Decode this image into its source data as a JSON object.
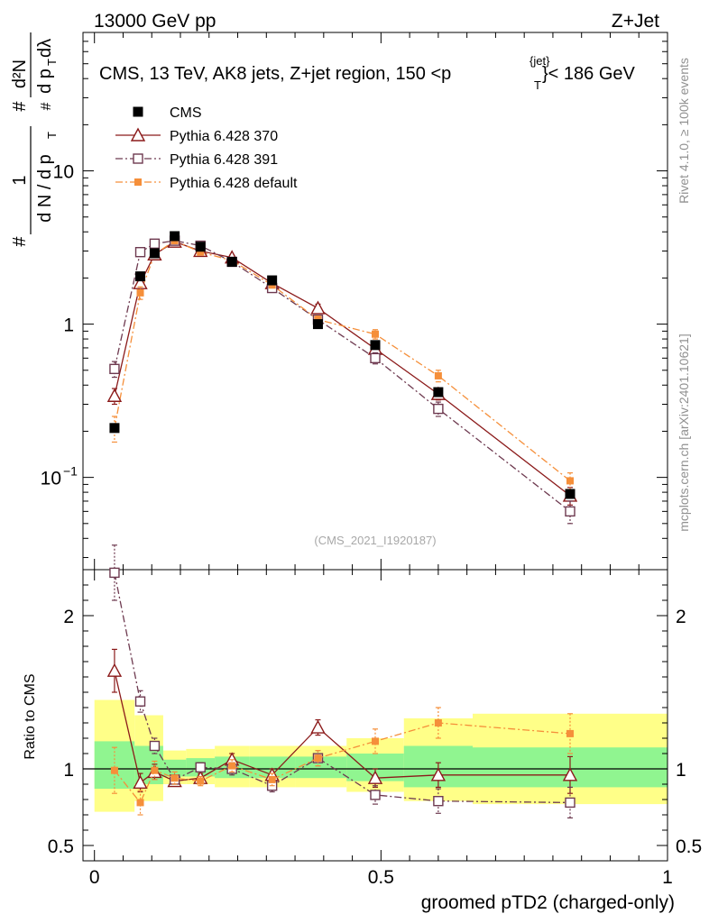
{
  "header": {
    "left": "13000 GeV pp",
    "right": "Z+Jet"
  },
  "side_labels": {
    "rivet": "Rivet 4.1.0, ≥ 100k events",
    "mcplots": "mcplots.cern.ch [arXiv:2401.10621]"
  },
  "chart_data": [
    {
      "type": "scatter",
      "panel": "main",
      "title": "CMS, 13 TeV, AK8 jets, Z+jet region, 150 <p",
      "title_sup": "{jet}",
      "title_sub": "T",
      "title_end": "}< 186 GeV",
      "watermark": "(CMS_2021_I1920187)",
      "ylabel": {
        "frac_num": "1",
        "frac_den": "d N / d p",
        "den_sub": "T",
        "num2": "d²N",
        "den2": "d p",
        "den2_sub": "T",
        "den2_end": " dλ",
        "hash": "#"
      },
      "yscale": "log",
      "ylim": [
        0.025,
        80
      ],
      "xlim": [
        -0.02,
        1.0
      ],
      "ytick_labels": [
        {
          "value": 10,
          "label": "10"
        },
        {
          "value": 1,
          "label": "1"
        },
        {
          "value": 0.1,
          "label": "10",
          "sup": "−1"
        }
      ],
      "x": [
        0.035,
        0.08,
        0.105,
        0.14,
        0.185,
        0.24,
        0.31,
        0.39,
        0.49,
        0.6,
        0.83
      ],
      "series": [
        {
          "name": "CMS",
          "color": "#000000",
          "style": "filled-square",
          "values": [
            0.21,
            2.05,
            2.9,
            3.75,
            3.2,
            2.55,
            1.93,
            1.0,
            0.73,
            0.36,
            0.078
          ]
        },
        {
          "name": "Pythia 6.428 370",
          "color": "#8b1a1a",
          "style": "open-triangle-solid",
          "values": [
            0.34,
            1.85,
            2.85,
            3.45,
            3.0,
            2.72,
            1.85,
            1.27,
            0.69,
            0.35,
            0.076
          ],
          "errors": [
            0.04,
            0.1,
            0.1,
            0.1,
            0.1,
            0.1,
            0.08,
            0.08,
            0.05,
            0.03,
            0.01
          ]
        },
        {
          "name": "Pythia 6.428 391",
          "color": "#6e3a50",
          "style": "open-square-dashdot",
          "values": [
            0.51,
            2.95,
            3.35,
            3.5,
            3.25,
            2.55,
            1.72,
            1.07,
            0.6,
            0.28,
            0.06
          ],
          "errors": [
            0.06,
            0.12,
            0.1,
            0.1,
            0.1,
            0.1,
            0.08,
            0.06,
            0.05,
            0.03,
            0.01
          ]
        },
        {
          "name": "Pythia 6.428 default",
          "color": "#f58f3a",
          "style": "filled-square-dashdot",
          "values": [
            0.21,
            1.6,
            2.85,
            3.5,
            2.95,
            2.6,
            1.8,
            1.07,
            0.86,
            0.46,
            0.095
          ],
          "errors": [
            0.04,
            0.15,
            0.12,
            0.12,
            0.1,
            0.1,
            0.08,
            0.06,
            0.06,
            0.04,
            0.012
          ]
        }
      ]
    },
    {
      "type": "scatter",
      "panel": "ratio",
      "ylabel": "Ratio to CMS",
      "xlabel": "groomed pTD2 (charged-only)",
      "xlim": [
        -0.02,
        1.0
      ],
      "ylim": [
        0.4,
        2.3
      ],
      "reference_line": 1,
      "ytick_labels": [
        {
          "value": 2,
          "label": "2"
        },
        {
          "value": 1,
          "label": "1"
        },
        {
          "value": 0.5,
          "label": "0.5"
        }
      ],
      "xtick_labels": [
        {
          "value": 0,
          "label": "0"
        },
        {
          "value": 0.5,
          "label": "0.5"
        },
        {
          "value": 1,
          "label": "1"
        }
      ],
      "bands": [
        {
          "x0": 0.0,
          "x1": 0.07,
          "yellow": [
            0.72,
            1.45
          ],
          "green": [
            0.87,
            1.18
          ]
        },
        {
          "x0": 0.07,
          "x1": 0.12,
          "yellow": [
            0.79,
            1.35
          ],
          "green": [
            0.9,
            1.15
          ]
        },
        {
          "x0": 0.12,
          "x1": 0.16,
          "yellow": [
            0.9,
            1.12
          ],
          "green": [
            0.95,
            1.06
          ]
        },
        {
          "x0": 0.16,
          "x1": 0.21,
          "yellow": [
            0.9,
            1.13
          ],
          "green": [
            0.95,
            1.07
          ]
        },
        {
          "x0": 0.21,
          "x1": 0.27,
          "yellow": [
            0.88,
            1.15
          ],
          "green": [
            0.94,
            1.08
          ]
        },
        {
          "x0": 0.27,
          "x1": 0.35,
          "yellow": [
            0.88,
            1.15
          ],
          "green": [
            0.94,
            1.08
          ]
        },
        {
          "x0": 0.35,
          "x1": 0.44,
          "yellow": [
            0.88,
            1.15
          ],
          "green": [
            0.94,
            1.08
          ]
        },
        {
          "x0": 0.44,
          "x1": 0.54,
          "yellow": [
            0.85,
            1.2
          ],
          "green": [
            0.92,
            1.1
          ]
        },
        {
          "x0": 0.54,
          "x1": 0.66,
          "yellow": [
            0.79,
            1.33
          ],
          "green": [
            0.88,
            1.15
          ]
        },
        {
          "x0": 0.66,
          "x1": 1.0,
          "yellow": [
            0.77,
            1.36
          ],
          "green": [
            0.88,
            1.14
          ]
        }
      ],
      "x": [
        0.035,
        0.08,
        0.105,
        0.14,
        0.185,
        0.24,
        0.31,
        0.39,
        0.49,
        0.6,
        0.83
      ],
      "series": [
        {
          "name": "Pythia 6.428 370",
          "color": "#8b1a1a",
          "values": [
            1.64,
            0.91,
            0.98,
            0.92,
            0.94,
            1.06,
            0.96,
            1.27,
            0.94,
            0.96,
            0.96
          ],
          "errors": [
            0.14,
            0.06,
            0.05,
            0.03,
            0.03,
            0.04,
            0.04,
            0.05,
            0.06,
            0.08,
            0.12
          ]
        },
        {
          "name": "Pythia 6.428 391",
          "color": "#6e3a50",
          "values": [
            2.28,
            1.44,
            1.15,
            0.93,
            1.01,
            1.0,
            0.89,
            1.07,
            0.83,
            0.79,
            0.78
          ],
          "errors": [
            0.18,
            0.07,
            0.05,
            0.03,
            0.03,
            0.04,
            0.04,
            0.05,
            0.06,
            0.08,
            0.1
          ]
        },
        {
          "name": "Pythia 6.428 default",
          "color": "#f58f3a",
          "values": [
            0.99,
            0.78,
            0.99,
            0.94,
            0.92,
            1.02,
            0.93,
            1.07,
            1.18,
            1.3,
            1.23
          ],
          "errors": [
            0.15,
            0.08,
            0.06,
            0.04,
            0.03,
            0.04,
            0.04,
            0.05,
            0.08,
            0.1,
            0.13
          ]
        }
      ]
    }
  ]
}
